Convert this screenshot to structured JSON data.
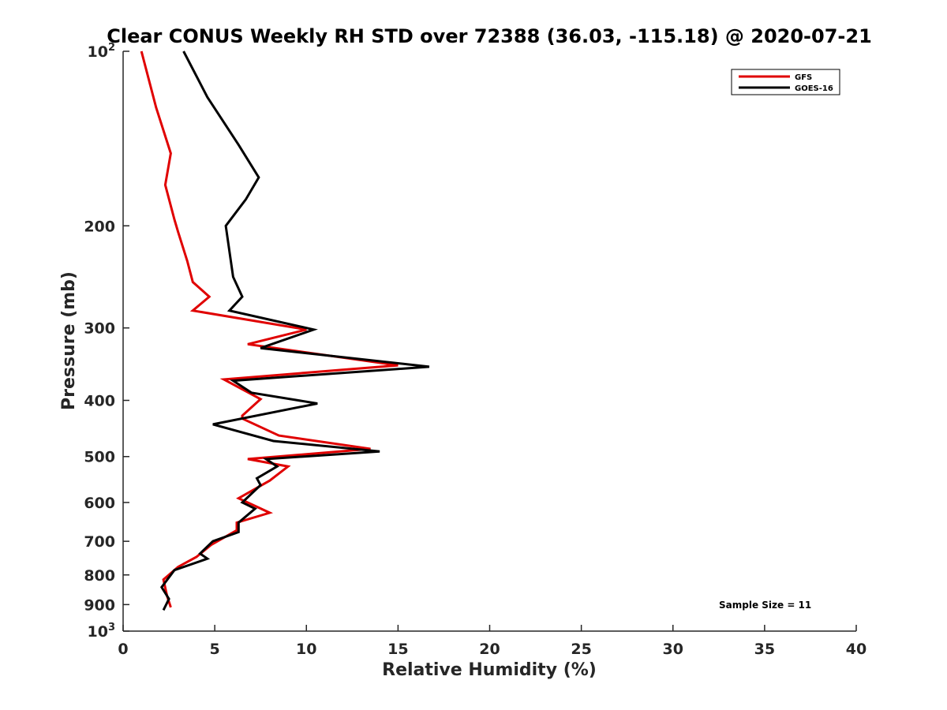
{
  "chart_data": {
    "type": "line",
    "title": "Clear CONUS Weekly RH STD over 72388 (36.03, -115.18) @ 2020-07-21",
    "xlabel": "Relative Humidity (%)",
    "ylabel": "Pressure (mb)",
    "xlim": [
      0,
      40
    ],
    "ylim": [
      100,
      1000
    ],
    "yscale": "log",
    "y_reversed": true,
    "x_ticks": [
      "0",
      "5",
      "10",
      "15",
      "20",
      "25",
      "30",
      "35",
      "40"
    ],
    "y_ticks": [
      {
        "value": 100,
        "label": "10",
        "sup": "2"
      },
      {
        "value": 200,
        "label": "200",
        "sup": ""
      },
      {
        "value": 300,
        "label": "300",
        "sup": ""
      },
      {
        "value": 400,
        "label": "400",
        "sup": ""
      },
      {
        "value": 500,
        "label": "500",
        "sup": ""
      },
      {
        "value": 600,
        "label": "600",
        "sup": ""
      },
      {
        "value": 700,
        "label": "700",
        "sup": ""
      },
      {
        "value": 800,
        "label": "800",
        "sup": ""
      },
      {
        "value": 900,
        "label": "900",
        "sup": ""
      },
      {
        "value": 1000,
        "label": "10",
        "sup": "3"
      }
    ],
    "grid": false,
    "legend_position": "top-right",
    "annotation": "Sample Size = 11",
    "series": [
      {
        "name": "GFS",
        "color": "#e00000",
        "points": [
          [
            1.0,
            100
          ],
          [
            1.8,
            125
          ],
          [
            2.6,
            150
          ],
          [
            2.3,
            170
          ],
          [
            2.8,
            195
          ],
          [
            3.0,
            205
          ],
          [
            3.5,
            230
          ],
          [
            3.8,
            250
          ],
          [
            4.7,
            265
          ],
          [
            3.8,
            280
          ],
          [
            10.0,
            302
          ],
          [
            6.8,
            320
          ],
          [
            15.0,
            348
          ],
          [
            5.5,
            368
          ],
          [
            7.5,
            398
          ],
          [
            6.5,
            425
          ],
          [
            6.5,
            430
          ],
          [
            8.5,
            460
          ],
          [
            13.5,
            485
          ],
          [
            6.8,
            505
          ],
          [
            9.0,
            520
          ],
          [
            8.0,
            550
          ],
          [
            6.3,
            590
          ],
          [
            8.0,
            625
          ],
          [
            6.2,
            650
          ],
          [
            6.2,
            670
          ],
          [
            4.8,
            710
          ],
          [
            4.0,
            745
          ],
          [
            3.0,
            775
          ],
          [
            2.2,
            815
          ],
          [
            2.4,
            870
          ],
          [
            2.6,
            910
          ]
        ]
      },
      {
        "name": "GOES-16",
        "color": "#000000",
        "points": [
          [
            3.3,
            100
          ],
          [
            4.6,
            120
          ],
          [
            6.3,
            145
          ],
          [
            7.4,
            165
          ],
          [
            6.7,
            180
          ],
          [
            5.6,
            200
          ],
          [
            6.0,
            245
          ],
          [
            6.5,
            265
          ],
          [
            5.8,
            280
          ],
          [
            10.4,
            302
          ],
          [
            7.5,
            325
          ],
          [
            16.7,
            350
          ],
          [
            6.0,
            370
          ],
          [
            7.0,
            388
          ],
          [
            10.6,
            405
          ],
          [
            4.9,
            440
          ],
          [
            8.2,
            470
          ],
          [
            14.0,
            490
          ],
          [
            7.8,
            505
          ],
          [
            8.4,
            520
          ],
          [
            7.3,
            545
          ],
          [
            7.5,
            560
          ],
          [
            6.5,
            600
          ],
          [
            7.2,
            615
          ],
          [
            6.3,
            650
          ],
          [
            6.3,
            675
          ],
          [
            4.9,
            700
          ],
          [
            4.2,
            735
          ],
          [
            4.6,
            750
          ],
          [
            2.8,
            785
          ],
          [
            2.1,
            840
          ],
          [
            2.5,
            880
          ],
          [
            2.2,
            920
          ]
        ]
      }
    ]
  }
}
